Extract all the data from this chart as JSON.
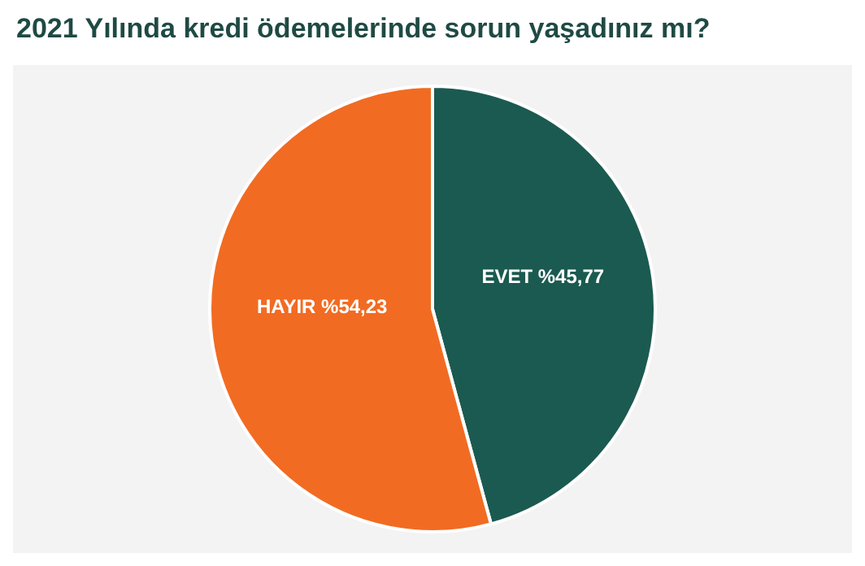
{
  "chart_data": {
    "type": "pie",
    "title": "2021 Yılında kredi ödemelerinde sorun yaşadınız mı?",
    "categories": [
      "EVET",
      "HAYIR"
    ],
    "values": [
      45.77,
      54.23
    ],
    "value_labels": [
      "%45,77",
      "%54,23"
    ],
    "colors": [
      "#1b5a50",
      "#f26b22"
    ],
    "legend": false
  }
}
